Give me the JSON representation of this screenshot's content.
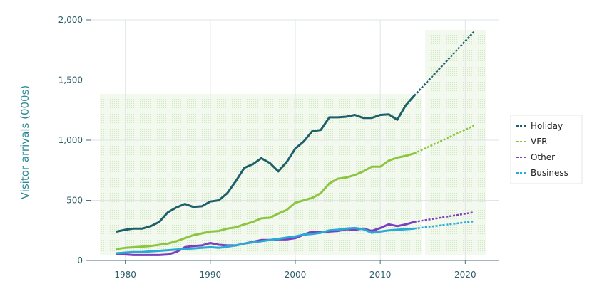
{
  "chart_data": {
    "type": "line",
    "ylabel": "Visitor arrivals (000s)",
    "xlabel": "",
    "xlim": [
      1976,
      2024
    ],
    "ylim": [
      0,
      2000
    ],
    "x_ticks": [
      "1980",
      "1990",
      "2000",
      "2010",
      "2020"
    ],
    "y_ticks": [
      "0",
      "500",
      "1,000",
      "1,500",
      "2,000"
    ],
    "x_tick_values": [
      1980,
      1990,
      2000,
      2010,
      2020
    ],
    "y_tick_values": [
      0,
      500,
      1000,
      1500,
      2000
    ],
    "legend_position": "right",
    "grid": true,
    "forecast_start": 2014,
    "series": [
      {
        "name": "Holiday",
        "color": "#1f5f6a",
        "line_style": "dashed",
        "x": [
          1979,
          1980,
          1981,
          1982,
          1983,
          1984,
          1985,
          1986,
          1987,
          1988,
          1989,
          1990,
          1991,
          1992,
          1993,
          1994,
          1995,
          1996,
          1997,
          1998,
          1999,
          2000,
          2001,
          2002,
          2003,
          2004,
          2005,
          2006,
          2007,
          2008,
          2009,
          2010,
          2011,
          2012,
          2013,
          2014
        ],
        "values": [
          240,
          255,
          265,
          265,
          285,
          320,
          400,
          440,
          470,
          445,
          450,
          490,
          500,
          560,
          660,
          770,
          800,
          850,
          810,
          740,
          820,
          930,
          990,
          1075,
          1085,
          1190,
          1190,
          1195,
          1210,
          1185,
          1185,
          1210,
          1215,
          1170,
          1290,
          1370
        ],
        "forecast_x": [
          2014,
          2021
        ],
        "forecast_values": [
          1370,
          1900
        ]
      },
      {
        "name": "VFR",
        "color": "#8cc63f",
        "line_style": "dashed",
        "x": [
          1979,
          1980,
          1981,
          1982,
          1983,
          1984,
          1985,
          1986,
          1987,
          1988,
          1989,
          1990,
          1991,
          1992,
          1993,
          1994,
          1995,
          1996,
          1997,
          1998,
          1999,
          2000,
          2001,
          2002,
          2003,
          2004,
          2005,
          2006,
          2007,
          2008,
          2009,
          2010,
          2011,
          2012,
          2013,
          2014
        ],
        "values": [
          95,
          105,
          110,
          115,
          120,
          130,
          140,
          160,
          185,
          210,
          225,
          240,
          245,
          265,
          275,
          300,
          320,
          350,
          355,
          390,
          420,
          480,
          500,
          520,
          560,
          640,
          680,
          690,
          710,
          740,
          780,
          780,
          830,
          855,
          870,
          890
        ],
        "forecast_x": [
          2014,
          2021
        ],
        "forecast_values": [
          890,
          1120
        ]
      },
      {
        "name": "Other",
        "color": "#7d3fbf",
        "line_style": "dashed",
        "x": [
          1979,
          1980,
          1981,
          1982,
          1983,
          1984,
          1985,
          1986,
          1987,
          1988,
          1989,
          1990,
          1991,
          1992,
          1993,
          1994,
          1995,
          1996,
          1997,
          1998,
          1999,
          2000,
          2001,
          2002,
          2003,
          2004,
          2005,
          2006,
          2007,
          2008,
          2009,
          2010,
          2011,
          2012,
          2013,
          2014
        ],
        "values": [
          55,
          50,
          45,
          45,
          45,
          45,
          50,
          70,
          110,
          120,
          125,
          145,
          130,
          125,
          125,
          140,
          155,
          170,
          170,
          175,
          175,
          185,
          215,
          240,
          235,
          240,
          245,
          260,
          255,
          265,
          245,
          270,
          300,
          285,
          300,
          320
        ],
        "forecast_x": [
          2014,
          2021
        ],
        "forecast_values": [
          320,
          400
        ]
      },
      {
        "name": "Business",
        "color": "#29a9d6",
        "line_style": "dashed",
        "x": [
          1979,
          1980,
          1981,
          1982,
          1983,
          1984,
          1985,
          1986,
          1987,
          1988,
          1989,
          1990,
          1991,
          1992,
          1993,
          1994,
          1995,
          1996,
          1997,
          1998,
          1999,
          2000,
          2001,
          2002,
          2003,
          2004,
          2005,
          2006,
          2007,
          2008,
          2009,
          2010,
          2011,
          2012,
          2013,
          2014
        ],
        "values": [
          60,
          65,
          70,
          70,
          75,
          80,
          85,
          90,
          95,
          100,
          105,
          110,
          105,
          115,
          125,
          140,
          150,
          160,
          170,
          180,
          190,
          200,
          215,
          220,
          230,
          250,
          255,
          265,
          270,
          260,
          230,
          240,
          250,
          255,
          260,
          265
        ],
        "forecast_x": [
          2014,
          2021
        ],
        "forecast_values": [
          265,
          325
        ]
      }
    ]
  }
}
